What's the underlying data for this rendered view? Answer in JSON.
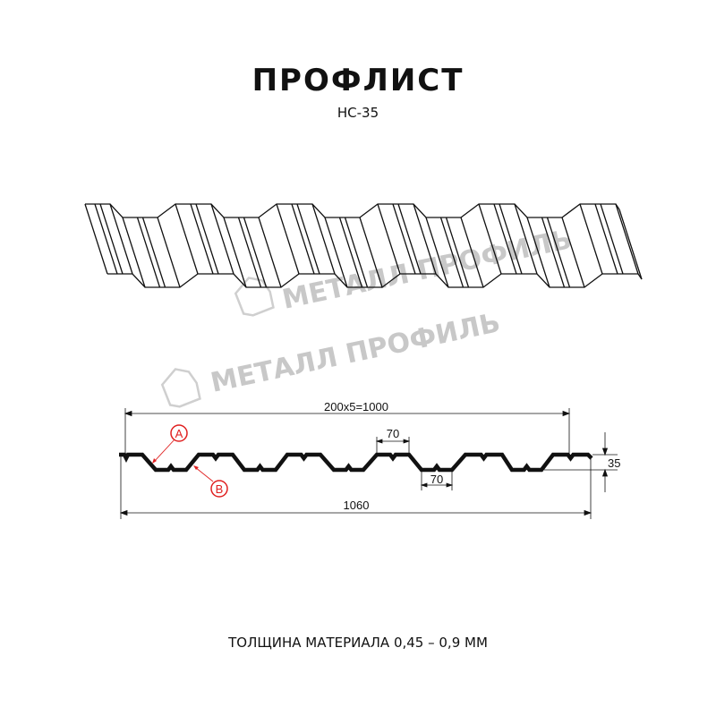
{
  "title": "ПРОФЛИСТ",
  "subtitle": "НС-35",
  "watermark": "МЕТАЛЛ ПРОФИЛЬ",
  "dimensions": {
    "pitch_total": "200x5=1000",
    "top_flange": "70",
    "bottom_flange": "70",
    "height": "35",
    "overall_width": "1060"
  },
  "markers": {
    "a": "A",
    "b": "B"
  },
  "footer": "ТОЛЩИНА МАТЕРИАЛА 0,45 – 0,9 ММ",
  "colors": {
    "profile": "#111111",
    "marker": "#e02020",
    "watermark": "#c8c8c8"
  }
}
